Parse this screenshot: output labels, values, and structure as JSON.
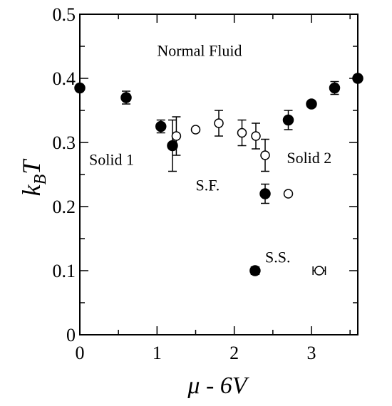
{
  "chart_data": {
    "type": "scatter",
    "xlabel": "μ - 6V",
    "ylabel_main": "k",
    "ylabel_sub": "B",
    "ylabel_tail": "T",
    "xlim": [
      0,
      3.6
    ],
    "ylim": [
      0,
      0.5
    ],
    "x_ticks": [
      0,
      1,
      2,
      3
    ],
    "x_tick_labels": [
      "0",
      "1",
      "2",
      "3"
    ],
    "y_ticks": [
      0,
      0.1,
      0.2,
      0.3,
      0.4,
      0.5
    ],
    "y_tick_labels": [
      "0",
      "0.1",
      "0.2",
      "0.3",
      "0.4",
      "0.5"
    ],
    "grid": false,
    "series": [
      {
        "marker": "filled-circle",
        "color": "#000000",
        "points": [
          {
            "x": 0.0,
            "y": 0.385,
            "yerr": 0.0,
            "xerr": 0.0
          },
          {
            "x": 0.6,
            "y": 0.37,
            "yerr": 0.01,
            "xerr": 0.0
          },
          {
            "x": 1.05,
            "y": 0.325,
            "yerr": 0.01,
            "xerr": 0.0
          },
          {
            "x": 1.2,
            "y": 0.295,
            "yerr": 0.04,
            "xerr": 0.0
          },
          {
            "x": 2.27,
            "y": 0.1,
            "yerr": 0.0,
            "xerr": 0.05
          },
          {
            "x": 2.4,
            "y": 0.22,
            "yerr": 0.015,
            "xerr": 0.0
          },
          {
            "x": 2.7,
            "y": 0.335,
            "yerr": 0.015,
            "xerr": 0.0
          },
          {
            "x": 3.0,
            "y": 0.36,
            "yerr": 0.0,
            "xerr": 0.0
          },
          {
            "x": 3.3,
            "y": 0.385,
            "yerr": 0.01,
            "xerr": 0.0
          },
          {
            "x": 3.6,
            "y": 0.4,
            "yerr": 0.005,
            "xerr": 0.0
          }
        ]
      },
      {
        "marker": "open-circle",
        "color": "#000000",
        "points": [
          {
            "x": 1.25,
            "y": 0.31,
            "yerr": 0.03,
            "xerr": 0.0
          },
          {
            "x": 1.5,
            "y": 0.32,
            "yerr": 0.0,
            "xerr": 0.0
          },
          {
            "x": 1.8,
            "y": 0.33,
            "yerr": 0.02,
            "xerr": 0.0
          },
          {
            "x": 2.1,
            "y": 0.315,
            "yerr": 0.02,
            "xerr": 0.0
          },
          {
            "x": 2.28,
            "y": 0.31,
            "yerr": 0.02,
            "xerr": 0.0
          },
          {
            "x": 2.4,
            "y": 0.28,
            "yerr": 0.025,
            "xerr": 0.0
          },
          {
            "x": 2.7,
            "y": 0.22,
            "yerr": 0.0,
            "xerr": 0.0
          },
          {
            "x": 3.1,
            "y": 0.1,
            "yerr": 0.0,
            "xerr": 0.08
          }
        ]
      }
    ],
    "annotations": [
      {
        "text": "Normal Fluid",
        "x": 1.0,
        "y": 0.435
      },
      {
        "text": "Solid 1",
        "x": 0.12,
        "y": 0.265
      },
      {
        "text": "Solid 2",
        "x": 2.68,
        "y": 0.268
      },
      {
        "text": "S.F.",
        "x": 1.5,
        "y": 0.225
      },
      {
        "text": "S.S.",
        "x": 2.4,
        "y": 0.113
      }
    ]
  }
}
